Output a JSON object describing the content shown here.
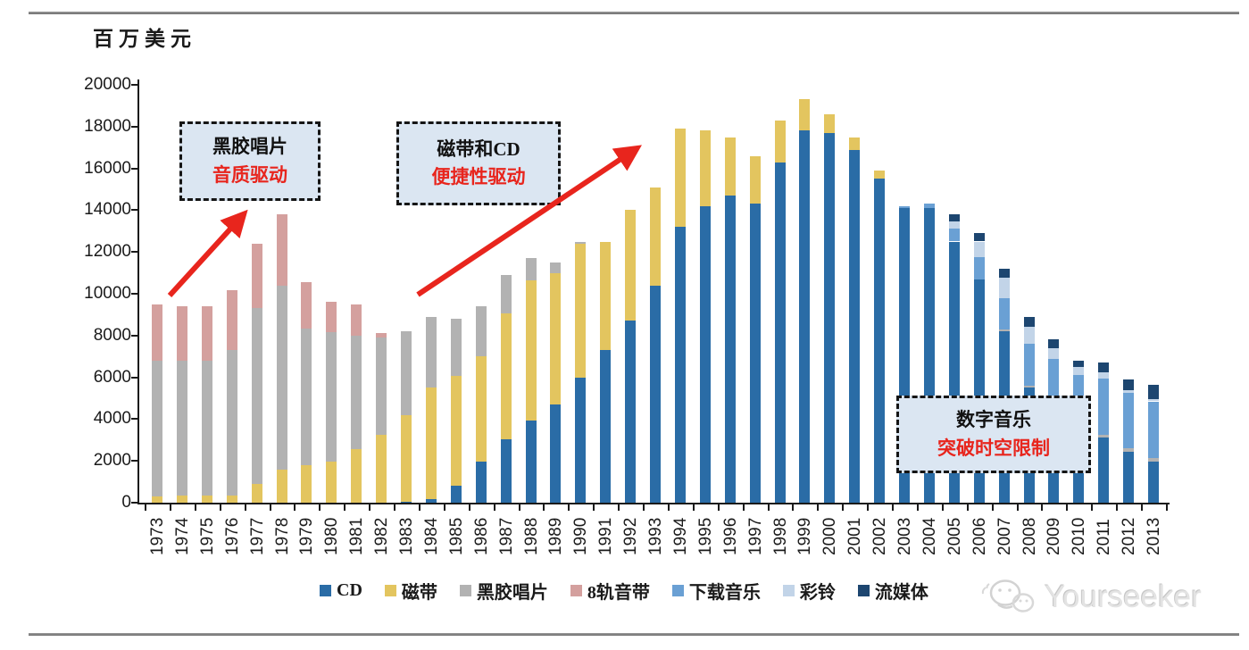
{
  "page": {
    "watermark_text": "Yourseeker"
  },
  "annotations": [
    {
      "id": "vinyl",
      "line1": "黑胶唱片",
      "line2": "音质驱动"
    },
    {
      "id": "cassette-cd",
      "line1": "磁带和CD",
      "line2": "便捷性驱动"
    },
    {
      "id": "digital",
      "line1": "数字音乐",
      "line2": "突破时空限制"
    }
  ],
  "chart_data": {
    "type": "bar",
    "stacked": true,
    "unit": "百万美元",
    "ylim": [
      0,
      20000
    ],
    "ytick_step": 2000,
    "grid": false,
    "legend_position": "bottom",
    "categories": [
      "1973",
      "1974",
      "1975",
      "1976",
      "1977",
      "1978",
      "1979",
      "1980",
      "1981",
      "1982",
      "1983",
      "1984",
      "1985",
      "1986",
      "1987",
      "1988",
      "1989",
      "1990",
      "1991",
      "1992",
      "1993",
      "1994",
      "1995",
      "1996",
      "1997",
      "1998",
      "1999",
      "2000",
      "2001",
      "2002",
      "2003",
      "2004",
      "2005",
      "2006",
      "2007",
      "2008",
      "2009",
      "2010",
      "2011",
      "2012",
      "2013"
    ],
    "series": [
      {
        "name": "CD",
        "color": "#2a6ca6",
        "values": [
          0,
          0,
          0,
          0,
          0,
          0,
          0,
          0,
          0,
          0,
          50,
          150,
          800,
          1950,
          3050,
          3950,
          4700,
          6000,
          7300,
          8700,
          10400,
          13200,
          14200,
          14700,
          14300,
          16300,
          17800,
          17700,
          16900,
          15500,
          14100,
          14100,
          12500,
          10700,
          8200,
          5500,
          4700,
          3900,
          3100,
          2450,
          1950
        ]
      },
      {
        "name": "磁带",
        "color": "#e3c55f",
        "values": [
          300,
          350,
          350,
          350,
          900,
          1600,
          1800,
          1950,
          2550,
          3250,
          4150,
          5350,
          5250,
          5050,
          6000,
          6700,
          6300,
          6400,
          5200,
          5300,
          4700,
          4700,
          3600,
          2800,
          2300,
          2000,
          1500,
          900,
          600,
          400,
          0,
          0,
          0,
          0,
          0,
          0,
          0,
          0,
          0,
          0,
          0
        ]
      },
      {
        "name": "黑胶唱片",
        "color": "#b2b2b2",
        "values": [
          6500,
          6450,
          6450,
          6950,
          8400,
          8800,
          6550,
          6200,
          5450,
          4650,
          4000,
          3400,
          2750,
          2400,
          1850,
          1050,
          500,
          100,
          0,
          0,
          0,
          0,
          0,
          0,
          0,
          0,
          0,
          0,
          0,
          0,
          0,
          0,
          0,
          0,
          100,
          100,
          100,
          100,
          150,
          150,
          200
        ]
      },
      {
        "name": "8轨音带",
        "color": "#d4a09e",
        "values": [
          2700,
          2600,
          2600,
          2850,
          3100,
          3400,
          2200,
          1450,
          1500,
          200,
          0,
          0,
          0,
          0,
          0,
          0,
          0,
          0,
          0,
          0,
          0,
          0,
          0,
          0,
          0,
          0,
          0,
          0,
          0,
          0,
          0,
          0,
          0,
          0,
          0,
          0,
          0,
          0,
          0,
          0,
          0
        ]
      },
      {
        "name": "下载音乐",
        "color": "#6aa0d4",
        "values": [
          0,
          0,
          0,
          0,
          0,
          0,
          0,
          0,
          0,
          0,
          0,
          0,
          0,
          0,
          0,
          0,
          0,
          0,
          0,
          0,
          0,
          0,
          0,
          0,
          0,
          0,
          0,
          0,
          0,
          0,
          100,
          200,
          600,
          1050,
          1500,
          2000,
          2100,
          2100,
          2700,
          2650,
          2700
        ]
      },
      {
        "name": "彩铃",
        "color": "#c2d4e8",
        "values": [
          0,
          0,
          0,
          0,
          0,
          0,
          0,
          0,
          0,
          0,
          0,
          0,
          0,
          0,
          0,
          0,
          0,
          0,
          0,
          0,
          0,
          0,
          0,
          0,
          0,
          0,
          0,
          0,
          0,
          0,
          0,
          0,
          350,
          750,
          950,
          800,
          500,
          400,
          300,
          150,
          100
        ]
      },
      {
        "name": "流媒体",
        "color": "#1d4670",
        "values": [
          0,
          0,
          0,
          0,
          0,
          0,
          0,
          0,
          0,
          0,
          0,
          0,
          0,
          0,
          0,
          0,
          0,
          0,
          0,
          0,
          0,
          0,
          0,
          0,
          0,
          0,
          0,
          0,
          0,
          0,
          0,
          0,
          350,
          400,
          450,
          500,
          400,
          300,
          450,
          500,
          700
        ]
      }
    ],
    "totals_note": "peak 1999 ≈ 19300, trough 2013 ≈ 5650"
  }
}
